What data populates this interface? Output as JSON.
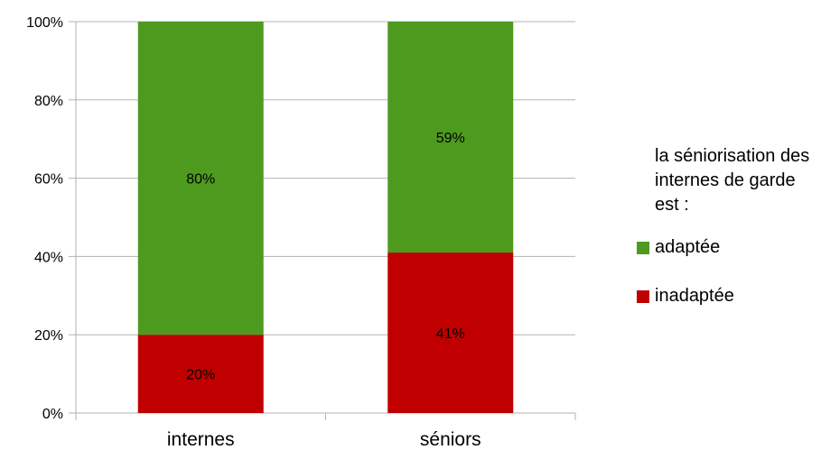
{
  "chart_data": {
    "type": "bar",
    "stacked": true,
    "categories": [
      "internes",
      "séniors"
    ],
    "series": [
      {
        "name": "inadaptée",
        "values": [
          20,
          41
        ],
        "labels": [
          "20%",
          "41%"
        ],
        "color": "#c00000"
      },
      {
        "name": "adaptée",
        "values": [
          80,
          59
        ],
        "labels": [
          "80%",
          "59%"
        ],
        "color": "#4e9a1e"
      }
    ],
    "ylim": [
      0,
      100
    ],
    "yticks": [
      "0%",
      "20%",
      "40%",
      "60%",
      "80%",
      "100%"
    ],
    "grid": true,
    "legend_position": "right",
    "legend_title": "la séniorisation des internes de garde est :"
  },
  "colors": {
    "grid": "#b3b3b3",
    "axis": "#b3b3b3"
  }
}
